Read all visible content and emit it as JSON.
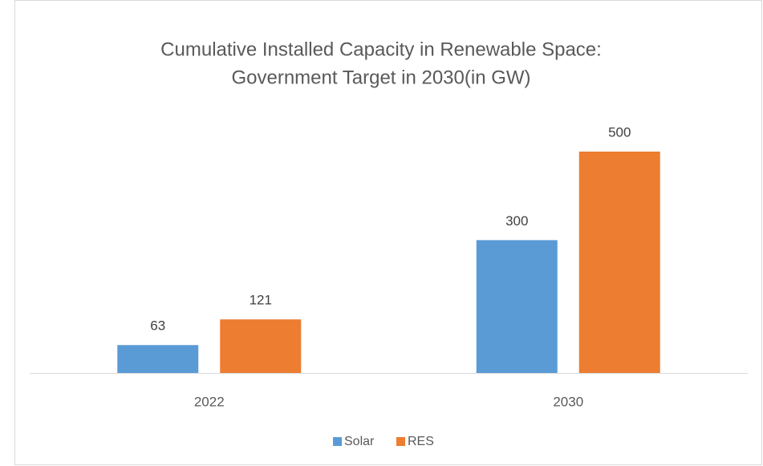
{
  "chart_data": {
    "type": "bar",
    "title": [
      "Cumulative Installed Capacity in Renewable Space:",
      "Government Target in 2030(in GW)"
    ],
    "categories": [
      "2022",
      "2030"
    ],
    "series": [
      {
        "name": "Solar",
        "color": "#5b9bd5",
        "values": [
          63,
          300
        ]
      },
      {
        "name": "RES",
        "color": "#ed7d31",
        "values": [
          121,
          500
        ]
      }
    ],
    "legend": "bottom"
  }
}
